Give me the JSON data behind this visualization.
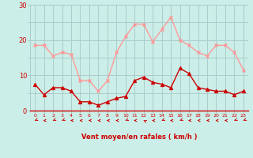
{
  "hours": [
    0,
    1,
    2,
    3,
    4,
    5,
    6,
    7,
    8,
    9,
    10,
    11,
    12,
    13,
    14,
    15,
    16,
    17,
    18,
    19,
    20,
    21,
    22,
    23
  ],
  "wind_avg": [
    7.5,
    4.5,
    6.5,
    6.5,
    5.5,
    2.5,
    2.5,
    1.5,
    2.5,
    3.5,
    4.0,
    8.5,
    9.5,
    8.0,
    7.5,
    6.5,
    12.0,
    10.5,
    6.5,
    6.0,
    5.5,
    5.5,
    4.5,
    5.5
  ],
  "wind_gust": [
    18.5,
    18.5,
    15.5,
    16.5,
    16.0,
    8.5,
    8.5,
    5.5,
    8.5,
    16.5,
    21.0,
    24.5,
    24.5,
    19.5,
    23.0,
    26.5,
    20.0,
    18.5,
    16.5,
    15.5,
    18.5,
    18.5,
    16.5,
    11.5
  ],
  "wind_avg_color": "#cc0000",
  "wind_gust_color": "#ff9999",
  "bg_color": "#cceee8",
  "grid_color": "#aacccc",
  "xlabel": "Vent moyen/en rafales ( km/h )",
  "xlabel_color": "#cc0000",
  "tick_color": "#cc0000",
  "ylim": [
    0,
    30
  ],
  "yticks": [
    0,
    5,
    10,
    15,
    20,
    25,
    30
  ],
  "arrow_angles": [
    225,
    270,
    225,
    225,
    270,
    270,
    270,
    270,
    270,
    270,
    225,
    270,
    315,
    270,
    225,
    270,
    225,
    270,
    270,
    270,
    270,
    270,
    225,
    225
  ]
}
